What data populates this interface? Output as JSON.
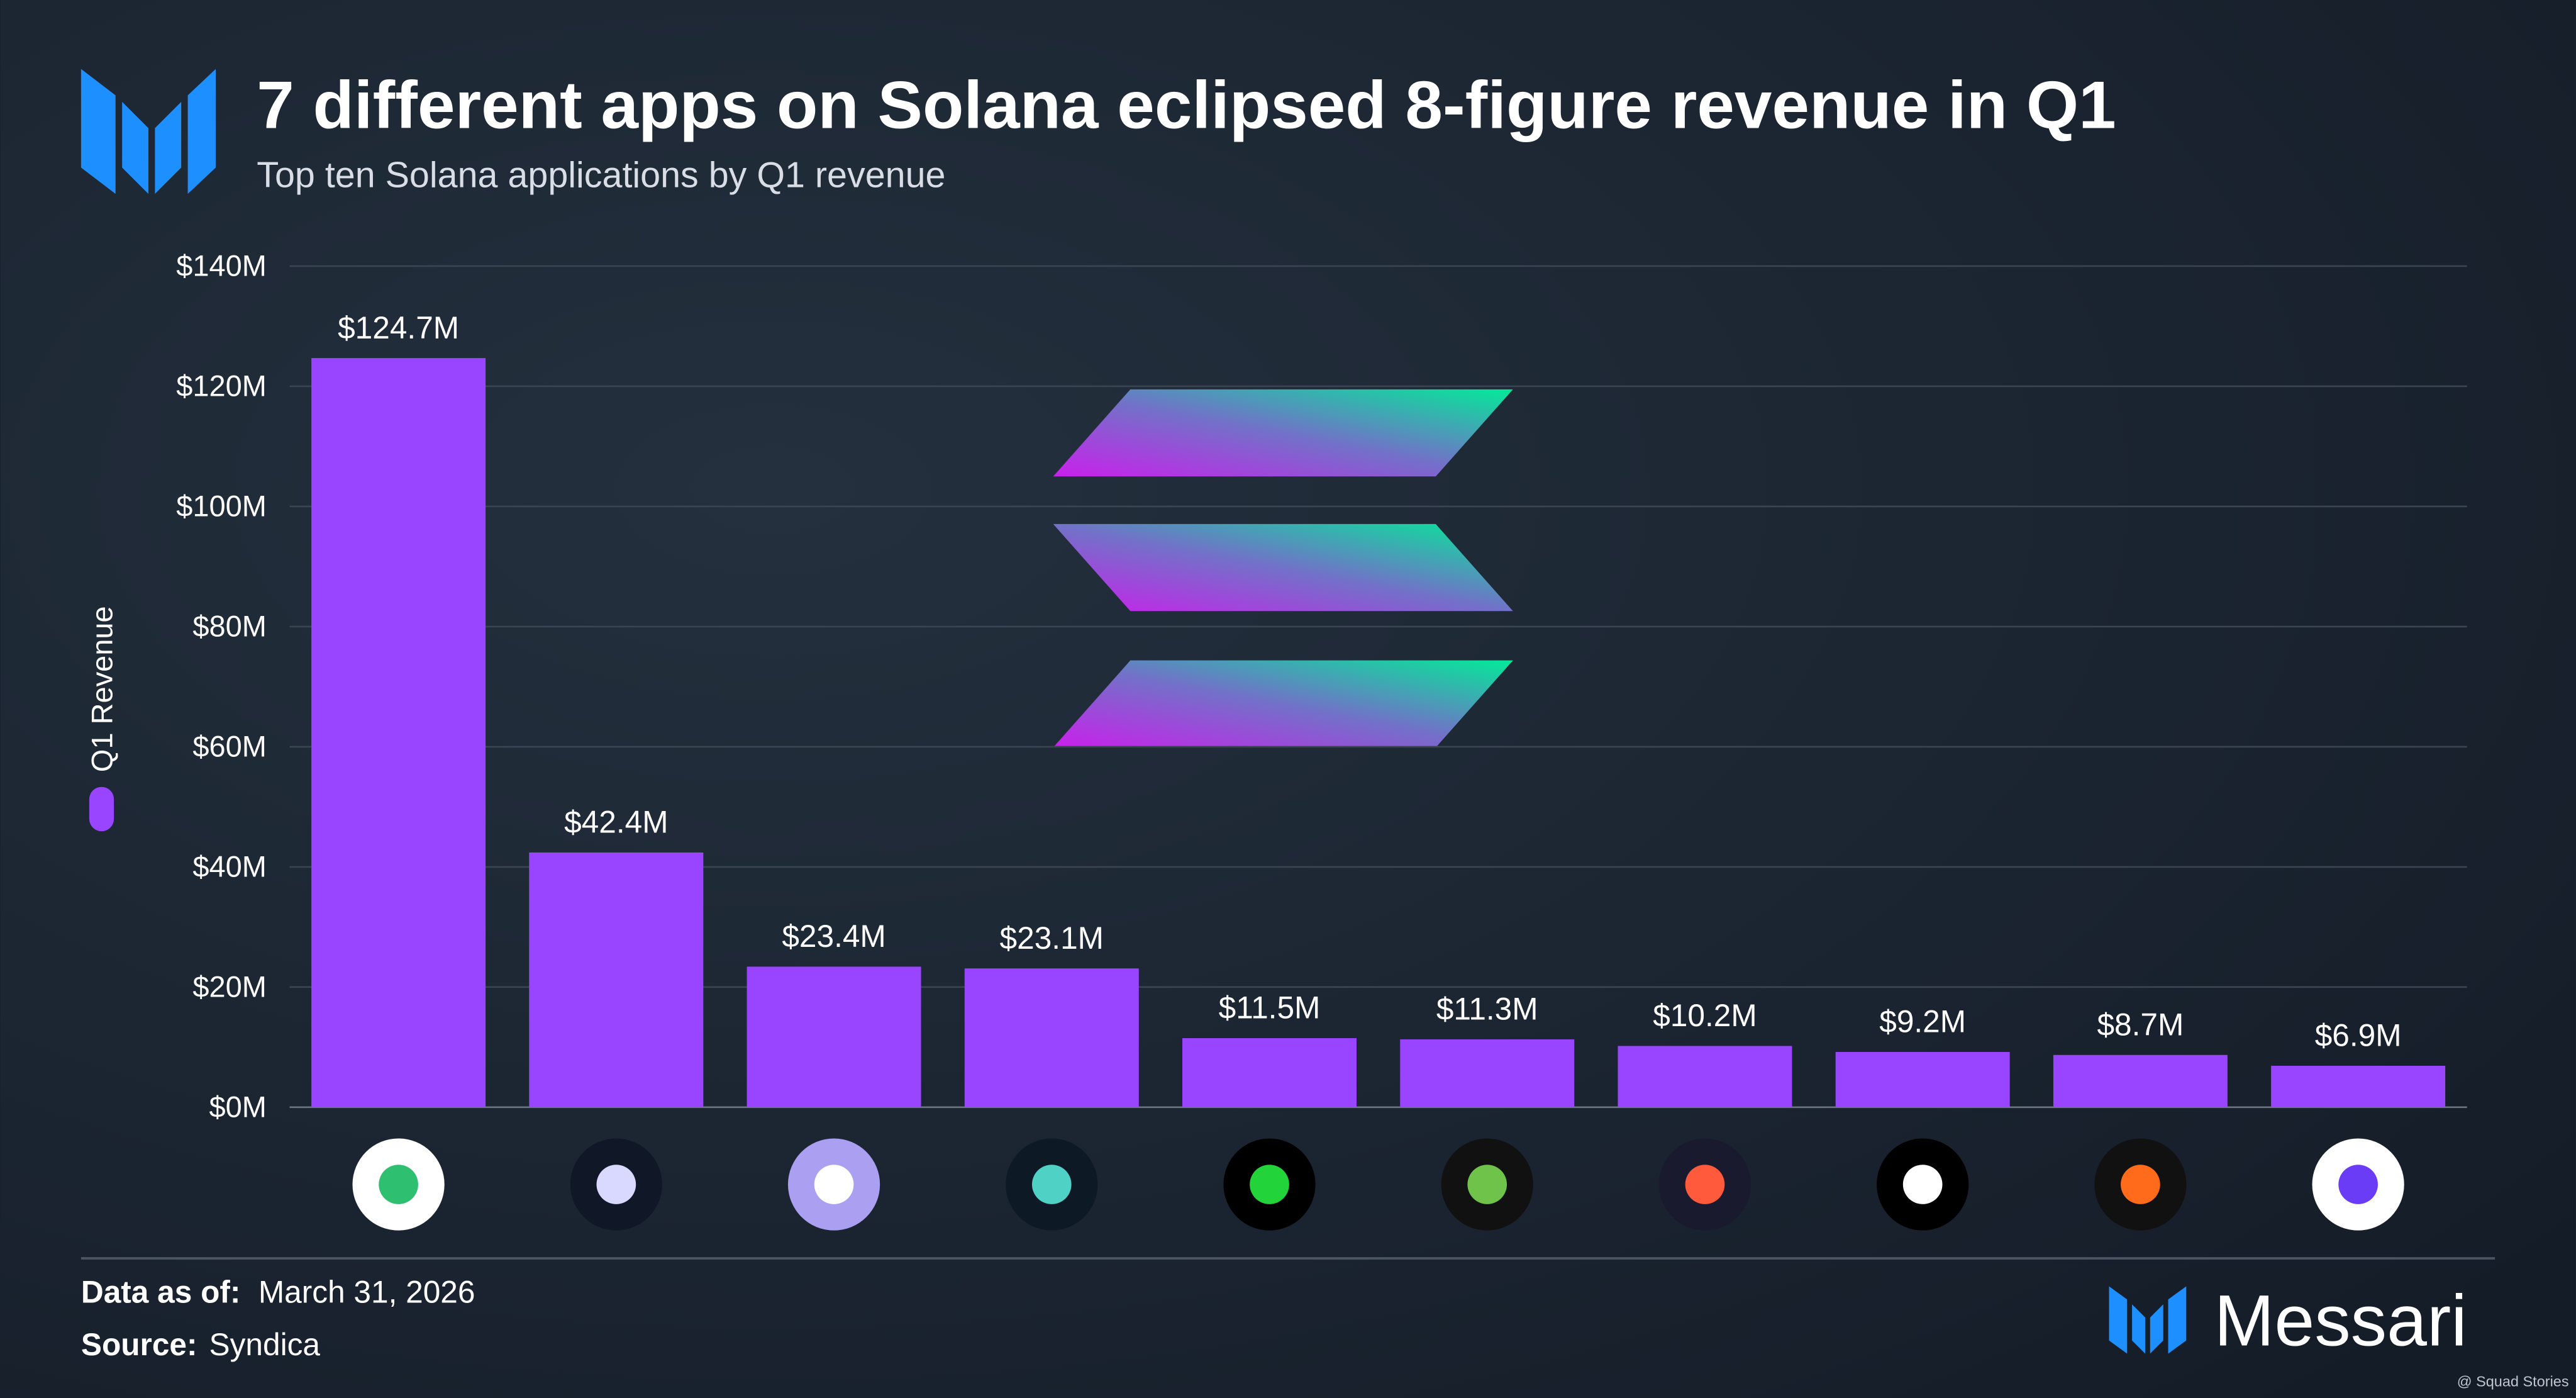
{
  "chart_data": {
    "type": "bar",
    "title": "7 different apps on Solana eclipsed 8-figure revenue in Q1",
    "subtitle": "Top ten Solana applications by Q1 revenue",
    "categories": [
      null,
      null,
      null,
      null,
      null,
      null,
      null,
      null,
      null,
      null
    ],
    "series": [
      {
        "name": "Q1 Revenue",
        "color": "#9945ff",
        "values": [
          124.7,
          42.4,
          23.4,
          23.1,
          11.5,
          11.3,
          10.2,
          9.2,
          8.7,
          6.9
        ],
        "value_labels": [
          "$124.7M",
          "$42.4M",
          "$23.4M",
          "$23.1M",
          "$11.5M",
          "$11.3M",
          "$10.2M",
          "$9.2M",
          "$8.7M",
          "$6.9M"
        ]
      }
    ],
    "ylim": [
      0,
      140
    ],
    "yticks": [
      {
        "value": 0,
        "label": "$0M"
      },
      {
        "value": 20,
        "label": "$20M"
      },
      {
        "value": 40,
        "label": "$40M"
      },
      {
        "value": 60,
        "label": "$60M"
      },
      {
        "value": 80,
        "label": "$80M"
      },
      {
        "value": 100,
        "label": "$100M"
      },
      {
        "value": 120,
        "label": "$120M"
      },
      {
        "value": 140,
        "label": "$140M"
      }
    ],
    "grid": true
  },
  "footer": {
    "date_label": "Data as of:",
    "date": "March 31, 2026",
    "source_label": "Source:",
    "source": "Syndica"
  },
  "brand": "Messari",
  "watermark": "@ Squad Stories"
}
